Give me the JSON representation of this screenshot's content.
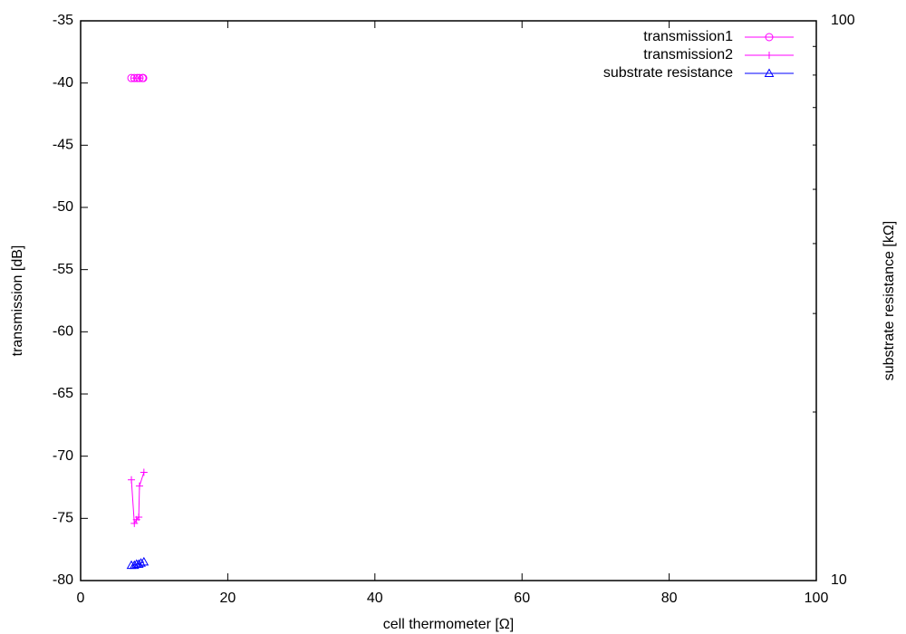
{
  "chart_data": {
    "type": "scatter-line",
    "xlabel": "cell thermometer [Ω]",
    "ylabel": "transmission [dB]",
    "y2label": "substrate resistance [kΩ]",
    "xlim": [
      0,
      100
    ],
    "xticks": [
      0,
      20,
      40,
      60,
      80,
      100
    ],
    "ylim": [
      -80,
      -35
    ],
    "yticks": [
      -80,
      -75,
      -70,
      -65,
      -60,
      -55,
      -50,
      -45,
      -40,
      -35
    ],
    "y2lim": [
      10,
      100
    ],
    "y2ticks": [
      10,
      100
    ],
    "y2minorticks": [
      20,
      30,
      40,
      50,
      60,
      70,
      80,
      90
    ],
    "y2log": true,
    "legend": "top-right",
    "series": [
      {
        "name": "transmission1",
        "color": "#ff00ff",
        "marker": "circle",
        "x": [
          6.9,
          7.3,
          7.7,
          8.0,
          8.4,
          8.5
        ],
        "values": [
          -39.6,
          -39.6,
          -39.6,
          -39.6,
          -39.6,
          -39.6
        ]
      },
      {
        "name": "transmission2",
        "color": "#ff00ff",
        "marker": "plus",
        "x": [
          6.9,
          7.3,
          7.6,
          7.9,
          8.0,
          8.6
        ],
        "values": [
          -71.9,
          -75.4,
          -75.1,
          -74.9,
          -72.4,
          -71.3
        ]
      },
      {
        "name": "substrate resistance",
        "color": "#0000ff",
        "marker": "triangle",
        "axis": "y2",
        "x": [
          6.9,
          7.3,
          7.6,
          7.9,
          8.2,
          8.6
        ],
        "values": [
          10.65,
          10.65,
          10.7,
          10.7,
          10.75,
          10.8
        ]
      }
    ]
  }
}
